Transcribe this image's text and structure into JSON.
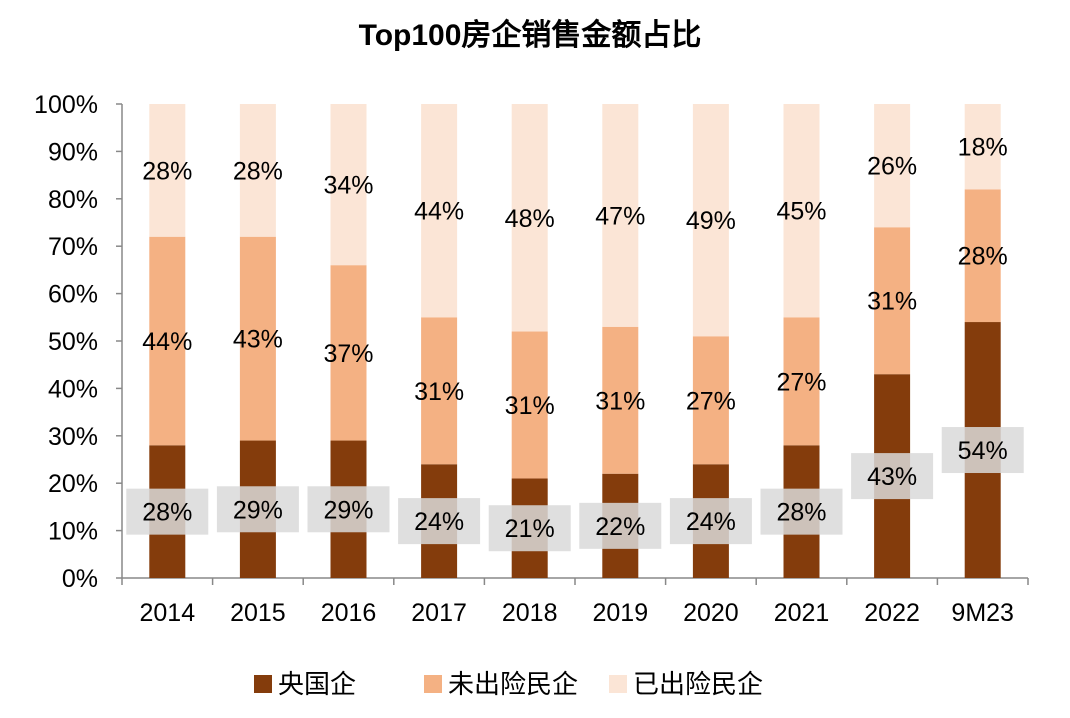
{
  "chart_data": {
    "type": "bar",
    "stacked": true,
    "title": "Top100房企销售金额占比",
    "xlabel": "",
    "ylabel": "",
    "ylim": [
      0,
      100
    ],
    "y_ticks": [
      "0%",
      "10%",
      "20%",
      "30%",
      "40%",
      "50%",
      "60%",
      "70%",
      "80%",
      "90%",
      "100%"
    ],
    "grid": false,
    "legend_position": "bottom",
    "categories": [
      "2014",
      "2015",
      "2016",
      "2017",
      "2018",
      "2019",
      "2020",
      "2021",
      "2022",
      "9M23"
    ],
    "series": [
      {
        "name": "央国企",
        "color": "#843C0C",
        "values": [
          28,
          29,
          29,
          24,
          21,
          22,
          24,
          28,
          43,
          54
        ],
        "labels": [
          "28%",
          "29%",
          "29%",
          "24%",
          "21%",
          "22%",
          "24%",
          "28%",
          "43%",
          "54%"
        ]
      },
      {
        "name": "未出险民企",
        "color": "#F4B183",
        "values": [
          44,
          43,
          37,
          31,
          31,
          31,
          27,
          27,
          31,
          28
        ],
        "labels": [
          "44%",
          "43%",
          "37%",
          "31%",
          "31%",
          "31%",
          "27%",
          "27%",
          "31%",
          "28%"
        ]
      },
      {
        "name": "已出险民企",
        "color": "#FBE5D6",
        "values": [
          28,
          28,
          34,
          44,
          48,
          47,
          49,
          45,
          26,
          18
        ],
        "labels": [
          "28%",
          "28%",
          "34%",
          "44%",
          "48%",
          "47%",
          "49%",
          "45%",
          "26%",
          "18%"
        ]
      }
    ],
    "label_background_color": "#D9D9D9"
  }
}
